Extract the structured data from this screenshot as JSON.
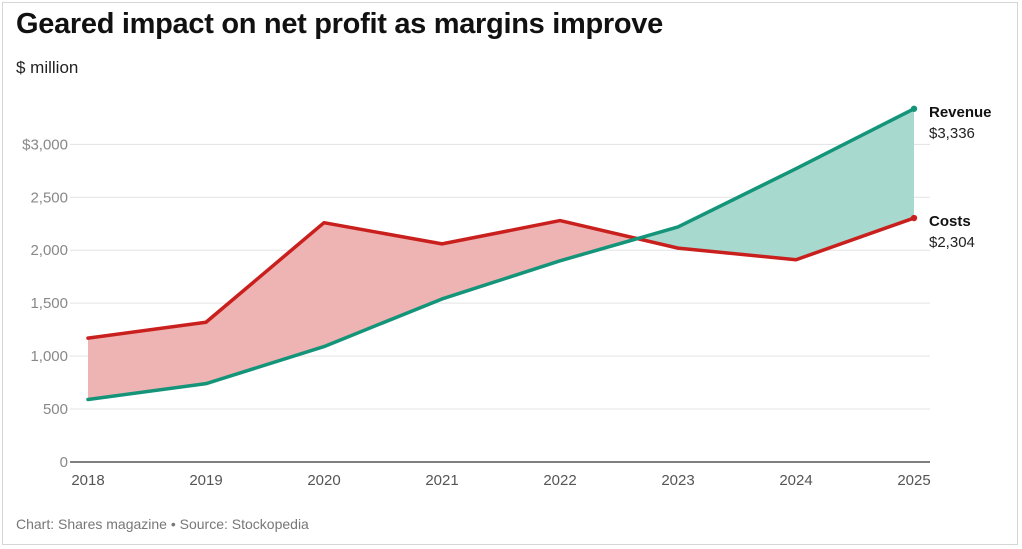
{
  "chart_data": {
    "type": "line",
    "title": "Geared impact on net profit as margins improve",
    "subtitle": "$ million",
    "footer": "Chart: Shares magazine • Source: Stockopedia",
    "categories": [
      "2018",
      "2019",
      "2020",
      "2021",
      "2022",
      "2023",
      "2024",
      "2025"
    ],
    "series": [
      {
        "name": "Revenue",
        "end_label": "$3,336",
        "color": "#14957a",
        "fill": "#a8d9ce",
        "values": [
          590,
          740,
          1090,
          1540,
          1900,
          2220,
          2770,
          3336
        ]
      },
      {
        "name": "Costs",
        "end_label": "$2,304",
        "color": "#c9201e",
        "fill": "#eeb3b3",
        "values": [
          1170,
          1320,
          2260,
          2060,
          2280,
          2020,
          1910,
          2304
        ]
      }
    ],
    "yticks": [
      {
        "value": 0,
        "label": "0"
      },
      {
        "value": 500,
        "label": "500"
      },
      {
        "value": 1000,
        "label": "1,000"
      },
      {
        "value": 1500,
        "label": "1,500"
      },
      {
        "value": 2000,
        "label": "2,000"
      },
      {
        "value": 2500,
        "label": "2,500"
      },
      {
        "value": 3000,
        "label": "$3,000"
      }
    ],
    "ylim": [
      0,
      3400
    ],
    "grid": true,
    "legend": "direct labels at right"
  }
}
